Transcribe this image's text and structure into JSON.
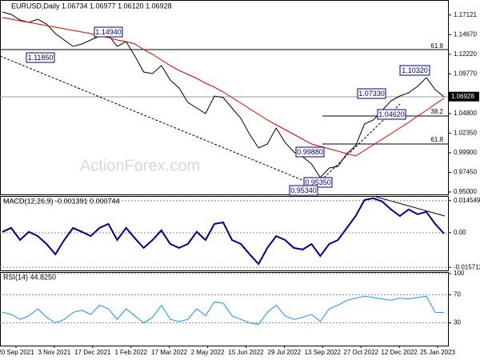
{
  "chart_data": [
    {
      "type": "line",
      "title": "EURUSD,Daily 1.06734 1.06977 1.06120 1.06928",
      "ylim": [
        0.947,
        1.188
      ],
      "yticks": [
        1.17121,
        {
          "value": 1.1467,
          "label": "1.14670"
        },
        {
          "value": 1.1222,
          "label": "1.12220"
        },
        {
          "value": 1.0977,
          "label": "1.09770"
        },
        {
          "value": 1.048,
          "label": "1.04800"
        },
        {
          "value": 1.0235,
          "label": "1.02350"
        },
        {
          "value": 0.999,
          "label": "0.99900"
        },
        {
          "value": 0.9745,
          "label": "0.97450"
        },
        {
          "value": 0.95,
          "label": "0.95000"
        }
      ],
      "current_price": 1.06928,
      "x_tick_labels": [
        "20 Sep 2021",
        "3 Nov 2021",
        "17 Dec 2021",
        "1 Feb 2022",
        "17 Mar 2022",
        "2 May 2022",
        "15 Jun 2022",
        "29 Jul 2022",
        "13 Sep 2022",
        "27 Oct 2022",
        "12 Dec 2022",
        "25 Jan 2023"
      ],
      "annotations": [
        "1.14940",
        "1.11850",
        "1.10320",
        "1.07330",
        "1.04620",
        "0.99880",
        "0.95350",
        "0.95340"
      ],
      "fib_labels": [
        "61.8",
        "38.2",
        "61.8"
      ],
      "watermark": "ActionForex.com",
      "series": [
        {
          "color": "#000000",
          "values": [
            1.175,
            1.172,
            1.165,
            1.162,
            1.166,
            1.16,
            1.148,
            1.14,
            1.132,
            1.135,
            1.14,
            1.145,
            1.146,
            1.132,
            1.138,
            1.12,
            1.1,
            1.098,
            1.108,
            1.09,
            1.08,
            1.062,
            1.055,
            1.048,
            1.07,
            1.068,
            1.055,
            1.042,
            1.022,
            1.005,
            1.01,
            1.03,
            1.012,
            1.0,
            0.994,
            0.985,
            0.968,
            0.98,
            0.982,
            0.998,
            1.008,
            1.035,
            1.04,
            1.052,
            1.064,
            1.07,
            1.074,
            1.082,
            1.093,
            1.078,
            1.069
          ]
        },
        {
          "color": "#e00000",
          "values": [
            1.168,
            1.166,
            1.164,
            1.162,
            1.16,
            1.158,
            1.156,
            1.154,
            1.152,
            1.15,
            1.148,
            1.145,
            1.143,
            1.14,
            1.138,
            1.135,
            1.128,
            1.122,
            1.115,
            1.108,
            1.102,
            1.097,
            1.092,
            1.086,
            1.081,
            1.075,
            1.068,
            1.061,
            1.054,
            1.047,
            1.04,
            1.034,
            1.028,
            1.022,
            1.016,
            1.01,
            1.007,
            1.004,
            1.001,
            0.998,
            0.995,
            1.002,
            1.009,
            1.016,
            1.023,
            1.03,
            1.037,
            1.045,
            1.052,
            1.06,
            1.067
          ]
        }
      ]
    },
    {
      "type": "line",
      "title": "MACD(12,26,9) -0.001391 0.000744",
      "ylim": [
        -0.0171,
        0.0167
      ],
      "yticks": [
        0.014549,
        {
          "value": 0,
          "label": "0.00"
        },
        -0.015712
      ],
      "series": [
        {
          "color": "#00008b",
          "values": [
            0.0004,
            0.0022,
            -0.0033,
            0.0004,
            -0.0015,
            -0.0051,
            -0.0098,
            -0.0033,
            0.0022,
            0.0004,
            -0.0015,
            0.0022,
            0.004,
            -0.0033,
            0.0022,
            -0.0025,
            -0.0069,
            -0.0033,
            0.0011,
            -0.0051,
            -0.0069,
            -0.0051,
            0.0004,
            -0.0033,
            0.004,
            0.0047,
            -0.0033,
            -0.0051,
            -0.0098,
            -0.0142,
            -0.0069,
            -0.0015,
            -0.0033,
            -0.0069,
            -0.0076,
            -0.0051,
            -0.0106,
            -0.0051,
            -0.0033,
            0.0022,
            0.0076,
            0.0149,
            0.0157,
            0.0142,
            0.0106,
            0.0076,
            0.0106,
            0.0084,
            0.0095,
            0.004,
            -0.0004
          ]
        }
      ]
    },
    {
      "type": "line",
      "title": "RSI(14) 44.8250",
      "ylim": [
        0,
        100
      ],
      "yticks": [
        100,
        70,
        30
      ],
      "series": [
        {
          "color": "#1e90ff",
          "values": [
            45,
            42,
            35,
            40,
            50,
            38,
            30,
            35,
            45,
            48,
            42,
            55,
            50,
            35,
            50,
            40,
            30,
            38,
            55,
            35,
            32,
            35,
            50,
            40,
            60,
            58,
            40,
            35,
            30,
            28,
            45,
            55,
            40,
            35,
            38,
            42,
            32,
            50,
            55,
            62,
            65,
            68,
            66,
            64,
            62,
            65,
            64,
            66,
            68,
            45,
            44.825
          ]
        }
      ]
    }
  ]
}
